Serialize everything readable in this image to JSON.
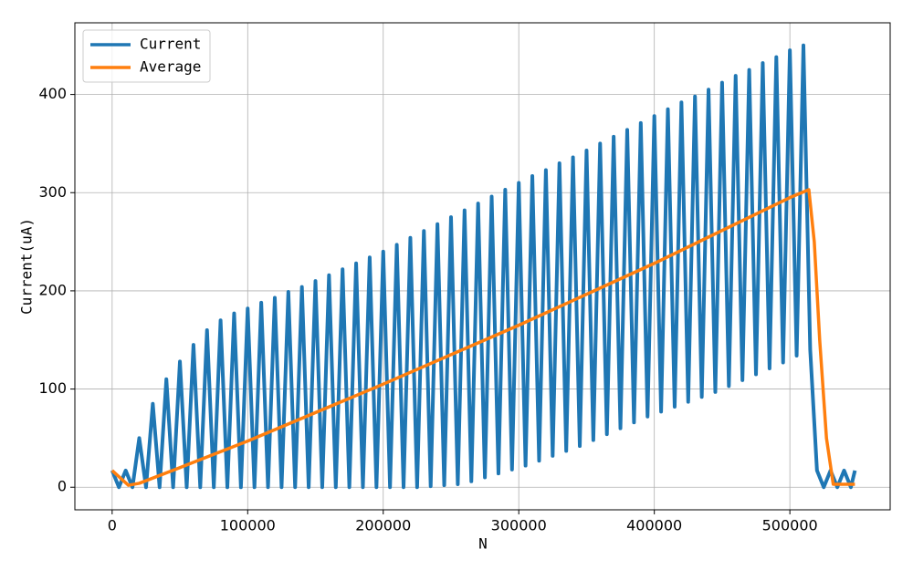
{
  "chart_data": {
    "type": "line",
    "xlabel": "N",
    "ylabel": "Current(uA)",
    "xlim": [
      -27500,
      574000
    ],
    "ylim": [
      -23,
      473
    ],
    "xticks": [
      0,
      100000,
      200000,
      300000,
      400000,
      500000
    ],
    "yticks": [
      0,
      100,
      200,
      300,
      400
    ],
    "grid": true,
    "legend": "upper left",
    "series": [
      {
        "name": "Current",
        "color": "#1f77b4",
        "x": [
          0,
          5000,
          10000,
          15000,
          20000,
          25000,
          30000,
          35000,
          40000,
          45000,
          50000,
          55000,
          60000,
          65000,
          70000,
          75000,
          80000,
          85000,
          90000,
          95000,
          100000,
          105000,
          110000,
          115000,
          120000,
          125000,
          130000,
          135000,
          140000,
          145000,
          150000,
          155000,
          160000,
          165000,
          170000,
          175000,
          180000,
          185000,
          190000,
          195000,
          200000,
          205000,
          210000,
          215000,
          220000,
          225000,
          230000,
          235000,
          240000,
          245000,
          250000,
          255000,
          260000,
          265000,
          270000,
          275000,
          280000,
          285000,
          290000,
          295000,
          300000,
          305000,
          310000,
          315000,
          320000,
          325000,
          330000,
          335000,
          340000,
          345000,
          350000,
          355000,
          360000,
          365000,
          370000,
          375000,
          380000,
          385000,
          390000,
          395000,
          400000,
          405000,
          410000,
          415000,
          420000,
          425000,
          430000,
          435000,
          440000,
          445000,
          450000,
          455000,
          460000,
          465000,
          470000,
          475000,
          480000,
          485000,
          490000,
          495000,
          500000,
          505000,
          510000,
          515000,
          520000,
          525000,
          530000,
          535000,
          540000,
          545000,
          548000
        ],
        "values": [
          17,
          0,
          17,
          0,
          50,
          0,
          85,
          0,
          110,
          0,
          128,
          0,
          145,
          0,
          160,
          0,
          170,
          0,
          177,
          0,
          182,
          0,
          188,
          0,
          193,
          0,
          199,
          0,
          204,
          0,
          210,
          0,
          216,
          0,
          222,
          0,
          228,
          0,
          234,
          0,
          240,
          0,
          247,
          0,
          254,
          0,
          261,
          1,
          268,
          2,
          275,
          3,
          282,
          6,
          289,
          10,
          296,
          14,
          303,
          18,
          310,
          22,
          317,
          27,
          323,
          32,
          330,
          37,
          336,
          42,
          343,
          48,
          350,
          54,
          357,
          60,
          364,
          66,
          371,
          72,
          378,
          77,
          385,
          82,
          392,
          87,
          398,
          92,
          405,
          97,
          412,
          103,
          419,
          109,
          425,
          115,
          432,
          121,
          438,
          127,
          445,
          134,
          450,
          140,
          17,
          0,
          17,
          0,
          17,
          0,
          17
        ]
      },
      {
        "name": "Average",
        "color": "#ff7f0e",
        "x": [
          0,
          12000,
          20000,
          50000,
          100000,
          200000,
          300000,
          400000,
          500000,
          514000,
          518000,
          522000,
          527000,
          532000,
          548000
        ],
        "values": [
          17,
          2,
          4,
          20,
          47,
          105,
          165,
          228,
          295,
          303,
          250,
          150,
          50,
          3,
          3
        ]
      }
    ]
  }
}
